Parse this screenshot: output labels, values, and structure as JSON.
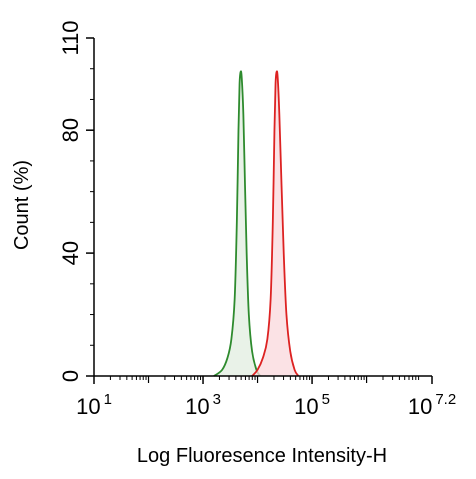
{
  "chart_data": {
    "type": "area",
    "xlabel": "Log Fluoresence Intensity-H",
    "ylabel": "Count  (%)",
    "x_scale": "log",
    "xlim": [
      1,
      7.2
    ],
    "ylim": [
      0,
      110
    ],
    "x_ticks": [
      {
        "value": 1,
        "base": "10",
        "exp": "1"
      },
      {
        "value": 3,
        "base": "10",
        "exp": "3"
      },
      {
        "value": 5,
        "base": "10",
        "exp": "5"
      },
      {
        "value": 7.2,
        "base": "10",
        "exp": "7.2"
      }
    ],
    "y_ticks": [
      {
        "value": 0,
        "label": "0"
      },
      {
        "value": 40,
        "label": "40"
      },
      {
        "value": 80,
        "label": "80"
      },
      {
        "value": 110,
        "label": "110"
      }
    ],
    "grid": false,
    "series": [
      {
        "color": "#2e8b2e",
        "fill": "#e2eee0",
        "x": [
          3.2,
          3.35,
          3.45,
          3.52,
          3.58,
          3.62,
          3.65,
          3.67,
          3.69,
          3.71,
          3.74,
          3.77,
          3.8,
          3.84,
          3.9,
          3.98,
          4.05
        ],
        "y": [
          0,
          2,
          6,
          12,
          25,
          50,
          80,
          95,
          99,
          97,
          85,
          62,
          40,
          20,
          8,
          2,
          0
        ]
      },
      {
        "color": "#dd2222",
        "fill": "#f9d8dc",
        "x": [
          3.9,
          4.0,
          4.1,
          4.18,
          4.24,
          4.28,
          4.31,
          4.33,
          4.35,
          4.37,
          4.4,
          4.44,
          4.48,
          4.53,
          4.6,
          4.68,
          4.75
        ],
        "y": [
          0,
          2,
          6,
          12,
          25,
          50,
          80,
          95,
          99,
          97,
          85,
          62,
          40,
          20,
          8,
          2,
          0
        ]
      }
    ]
  }
}
